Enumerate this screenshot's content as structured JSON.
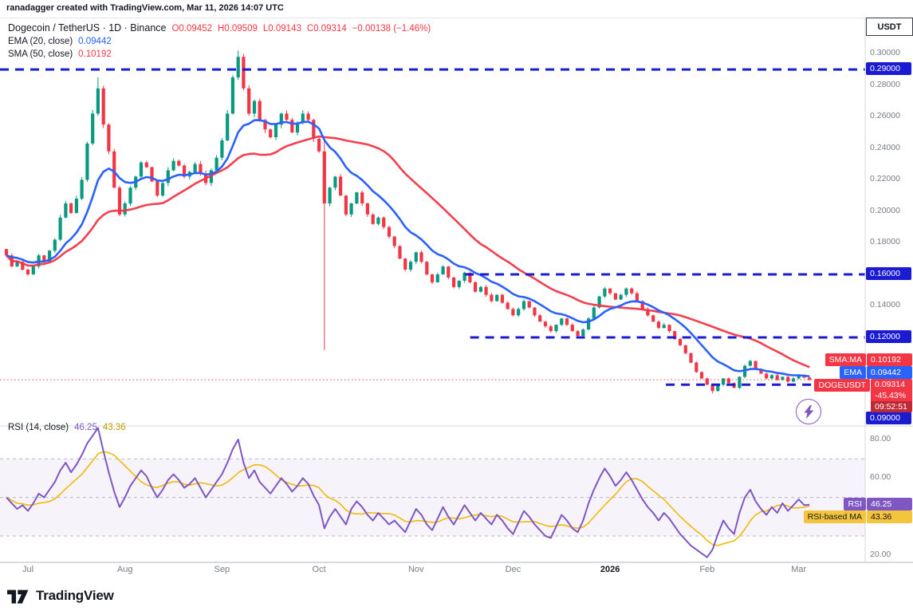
{
  "attribution": "ranadagger created with TradingView.com, Mar 11, 2026 14:07 UTC",
  "legend": {
    "title": "Dogecoin / TetherUS · 1D · Binance",
    "ohlc_values": [
      "O0.09452",
      "H0.09509",
      "L0.09143",
      "C0.09314",
      "−0.00138 (−1.46%)"
    ],
    "ema": {
      "label": "EMA (20, close)",
      "value": "0.09442"
    },
    "sma": {
      "label": "SMA (50, close)",
      "value": "0.10192"
    }
  },
  "rsi_legend": {
    "label": "RSI (14, close)",
    "value": "46.25",
    "ma_value": "43.36"
  },
  "price_axis": {
    "currency": "USDT",
    "ticks": [
      "0.30000",
      "0.28000",
      "0.26000",
      "0.24000",
      "0.22000",
      "0.20000",
      "0.18000",
      "0.16000",
      "0.14000",
      "0.12000"
    ],
    "level_badges": [
      "0.29000",
      "0.16000",
      "0.12000",
      "0.09000"
    ],
    "sma_badge": {
      "name": "SMA:MA",
      "value": "0.10192"
    },
    "ema_badge": {
      "name": "EMA",
      "value": "0.09442"
    },
    "price_badge": {
      "name": "DOGEUSDT",
      "value": "0.09314",
      "change": "-45.43%",
      "countdown": "09:52:51"
    }
  },
  "rsi_axis": {
    "ticks": [
      "80.00",
      "60.00",
      "40.00",
      "20.00"
    ],
    "rsi_badge": {
      "name": "RSI",
      "value": "46.25"
    },
    "ma_badge": {
      "name": "RSI-based MA",
      "value": "43.36"
    }
  },
  "time_axis": {
    "labels": [
      "Jul",
      "Aug",
      "Sep",
      "Oct",
      "Nov",
      "Dec",
      "2026",
      "Feb",
      "Mar"
    ]
  },
  "footer": {
    "brand": "TradingView"
  },
  "colors": {
    "up": "#089981",
    "down": "#f23645",
    "ema_line": "#2962ff",
    "sma_line": "#f23645",
    "level_line": "#1b1bd1",
    "rsi_line": "#7e57c2",
    "rsi_ma_line": "#f0b90b",
    "axis_text": "#787b86"
  },
  "chart_data": [
    {
      "type": "candlestick",
      "title": "Dogecoin / TetherUS · 1D · Binance",
      "ylabel": "Price (USDT)",
      "ylim": [
        0.064,
        0.321
      ],
      "x_tick_labels": [
        "Jul",
        "Aug",
        "Sep",
        "Oct",
        "Nov",
        "Dec",
        "2026",
        "Feb",
        "Mar"
      ],
      "x_tick_indices": [
        4,
        22,
        40,
        58,
        76,
        94,
        112,
        130,
        147
      ],
      "closes": [
        0.172,
        0.165,
        0.168,
        0.163,
        0.16,
        0.165,
        0.172,
        0.168,
        0.175,
        0.182,
        0.196,
        0.205,
        0.199,
        0.208,
        0.22,
        0.243,
        0.262,
        0.278,
        0.255,
        0.238,
        0.215,
        0.198,
        0.205,
        0.215,
        0.222,
        0.231,
        0.228,
        0.219,
        0.21,
        0.218,
        0.226,
        0.232,
        0.229,
        0.222,
        0.225,
        0.23,
        0.224,
        0.218,
        0.226,
        0.234,
        0.245,
        0.262,
        0.285,
        0.298,
        0.278,
        0.262,
        0.27,
        0.258,
        0.252,
        0.247,
        0.255,
        0.262,
        0.258,
        0.25,
        0.256,
        0.262,
        0.258,
        0.246,
        0.238,
        0.205,
        0.215,
        0.222,
        0.21,
        0.198,
        0.205,
        0.212,
        0.205,
        0.198,
        0.192,
        0.196,
        0.19,
        0.184,
        0.178,
        0.17,
        0.163,
        0.168,
        0.174,
        0.168,
        0.16,
        0.155,
        0.16,
        0.165,
        0.158,
        0.152,
        0.156,
        0.161,
        0.155,
        0.149,
        0.152,
        0.147,
        0.143,
        0.147,
        0.142,
        0.138,
        0.134,
        0.138,
        0.143,
        0.139,
        0.134,
        0.13,
        0.127,
        0.124,
        0.128,
        0.132,
        0.128,
        0.124,
        0.121,
        0.125,
        0.132,
        0.139,
        0.146,
        0.151,
        0.148,
        0.144,
        0.147,
        0.151,
        0.148,
        0.143,
        0.138,
        0.134,
        0.13,
        0.126,
        0.128,
        0.124,
        0.119,
        0.115,
        0.11,
        0.104,
        0.098,
        0.094,
        0.09,
        0.086,
        0.09,
        0.094,
        0.091,
        0.088,
        0.095,
        0.102,
        0.105,
        0.1,
        0.097,
        0.094,
        0.096,
        0.093,
        0.095,
        0.092,
        0.094,
        0.096,
        0.0945,
        0.09314
      ],
      "candle_overrides": {
        "17": {
          "high": 0.285
        },
        "43": {
          "high": 0.302
        },
        "59": {
          "high": 0.246,
          "low": 0.112
        },
        "131": {
          "low": 0.0845
        }
      },
      "moving_averages": [
        {
          "name": "EMA (20, close)",
          "period": 20,
          "color": "#2962ff",
          "last_value": 0.09442
        },
        {
          "name": "SMA (50, close)",
          "period": 50,
          "color": "#f23645",
          "last_value": 0.10192
        }
      ],
      "levels": [
        {
          "price": 0.29,
          "start_frac": 0
        },
        {
          "price": 0.16,
          "start_frac": 0.534
        },
        {
          "price": 0.12,
          "start_frac": 0.54
        },
        {
          "price": 0.09,
          "start_frac": 0.768
        }
      ],
      "last_price": 0.09314,
      "up_color": "#089981",
      "down_color": "#f23645",
      "level_color": "#1b1bd1"
    },
    {
      "type": "line",
      "title": "RSI (14, close)",
      "ylim": [
        16,
        87
      ],
      "y_ticks": [
        80,
        60,
        40,
        20
      ],
      "bands": [
        70,
        50,
        30
      ],
      "series": [
        {
          "name": "RSI",
          "color": "#7e57c2",
          "last_value": 46.25,
          "values": [
            50,
            47,
            44,
            46,
            43,
            47,
            52,
            50,
            54,
            58,
            64,
            68,
            63,
            67,
            72,
            78,
            82,
            86,
            74,
            63,
            53,
            45,
            50,
            56,
            60,
            64,
            61,
            55,
            50,
            54,
            59,
            62,
            59,
            55,
            57,
            60,
            55,
            50,
            54,
            58,
            62,
            68,
            75,
            80,
            68,
            60,
            64,
            58,
            55,
            52,
            56,
            60,
            57,
            53,
            56,
            60,
            57,
            51,
            46,
            34,
            40,
            44,
            40,
            36,
            44,
            48,
            45,
            41,
            38,
            42,
            39,
            36,
            38,
            35,
            32,
            38,
            44,
            41,
            36,
            33,
            39,
            45,
            40,
            36,
            41,
            46,
            42,
            38,
            42,
            39,
            36,
            41,
            38,
            34,
            31,
            37,
            43,
            40,
            36,
            33,
            30,
            29,
            35,
            41,
            38,
            34,
            32,
            38,
            47,
            54,
            60,
            65,
            61,
            56,
            59,
            63,
            59,
            54,
            49,
            45,
            42,
            38,
            42,
            39,
            35,
            31,
            28,
            25,
            23,
            21,
            19,
            23,
            31,
            38,
            34,
            31,
            42,
            50,
            54,
            48,
            44,
            41,
            45,
            42,
            47,
            43,
            46,
            49,
            46,
            46.25
          ]
        },
        {
          "name": "RSI-based MA",
          "color": "#f0b90b",
          "last_value": 43.36,
          "derived": "sma_of_rsi"
        }
      ]
    }
  ]
}
